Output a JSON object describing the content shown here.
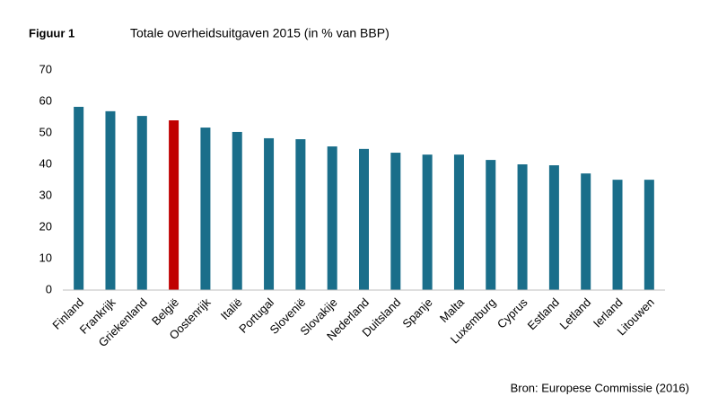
{
  "chart_data": {
    "type": "bar",
    "figure_label": "Figuur 1",
    "title": "Totale overheidsuitgaven 2015 (in % van BBP)",
    "source": "Bron: Europese Commissie (2016)",
    "categories": [
      "Finland",
      "Frankrijk",
      "Griekenland",
      "België",
      "Oostenrijk",
      "Italië",
      "Portugal",
      "Slovenië",
      "Slovakije",
      "Nederland",
      "Duitsland",
      "Spanje",
      "Malta",
      "Luxemburg",
      "Cyprus",
      "Estland",
      "Letland",
      "Ierland",
      "Litouwen"
    ],
    "values": [
      58.3,
      56.9,
      55.4,
      54.0,
      51.7,
      50.3,
      48.3,
      48.0,
      45.7,
      44.9,
      43.7,
      43.1,
      43.1,
      41.4,
      40.0,
      39.7,
      37.1,
      35.1,
      35.1
    ],
    "colors": [
      "#1a6e8a",
      "#1a6e8a",
      "#1a6e8a",
      "#c00000",
      "#1a6e8a",
      "#1a6e8a",
      "#1a6e8a",
      "#1a6e8a",
      "#1a6e8a",
      "#1a6e8a",
      "#1a6e8a",
      "#1a6e8a",
      "#1a6e8a",
      "#1a6e8a",
      "#1a6e8a",
      "#1a6e8a",
      "#1a6e8a",
      "#1a6e8a",
      "#1a6e8a"
    ],
    "ylim": [
      0,
      70
    ],
    "yticks": [
      0,
      10,
      20,
      30,
      40,
      50,
      60,
      70
    ],
    "grid": false
  }
}
